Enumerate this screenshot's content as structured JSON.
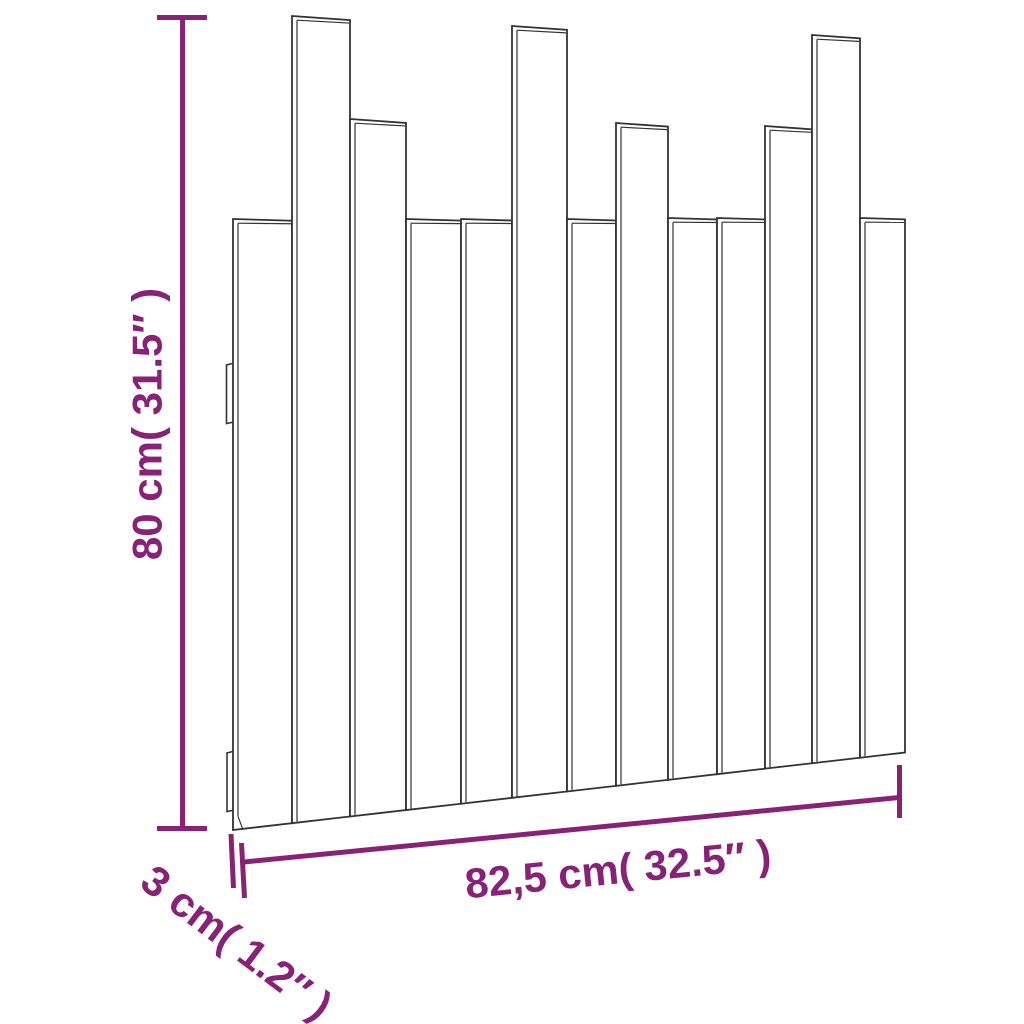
{
  "diagram": {
    "subject": "wall-headboard-dimension-drawing",
    "slat_count": 13,
    "bracket_count": 2
  },
  "dimensions": {
    "height": {
      "label": "80 cm( 31.5″ )",
      "value_cm": "80",
      "value_in": "31.5"
    },
    "width": {
      "label": "82,5 cm( 32.5″ )",
      "value_cm": "82,5",
      "value_in": "32.5"
    },
    "depth": {
      "label": "3 cm( 1.2″ )",
      "value_cm": "3",
      "value_in": "1.2"
    }
  },
  "colors": {
    "dimension_accent": "#882277",
    "outline": "#333333",
    "background": "#ffffff"
  }
}
